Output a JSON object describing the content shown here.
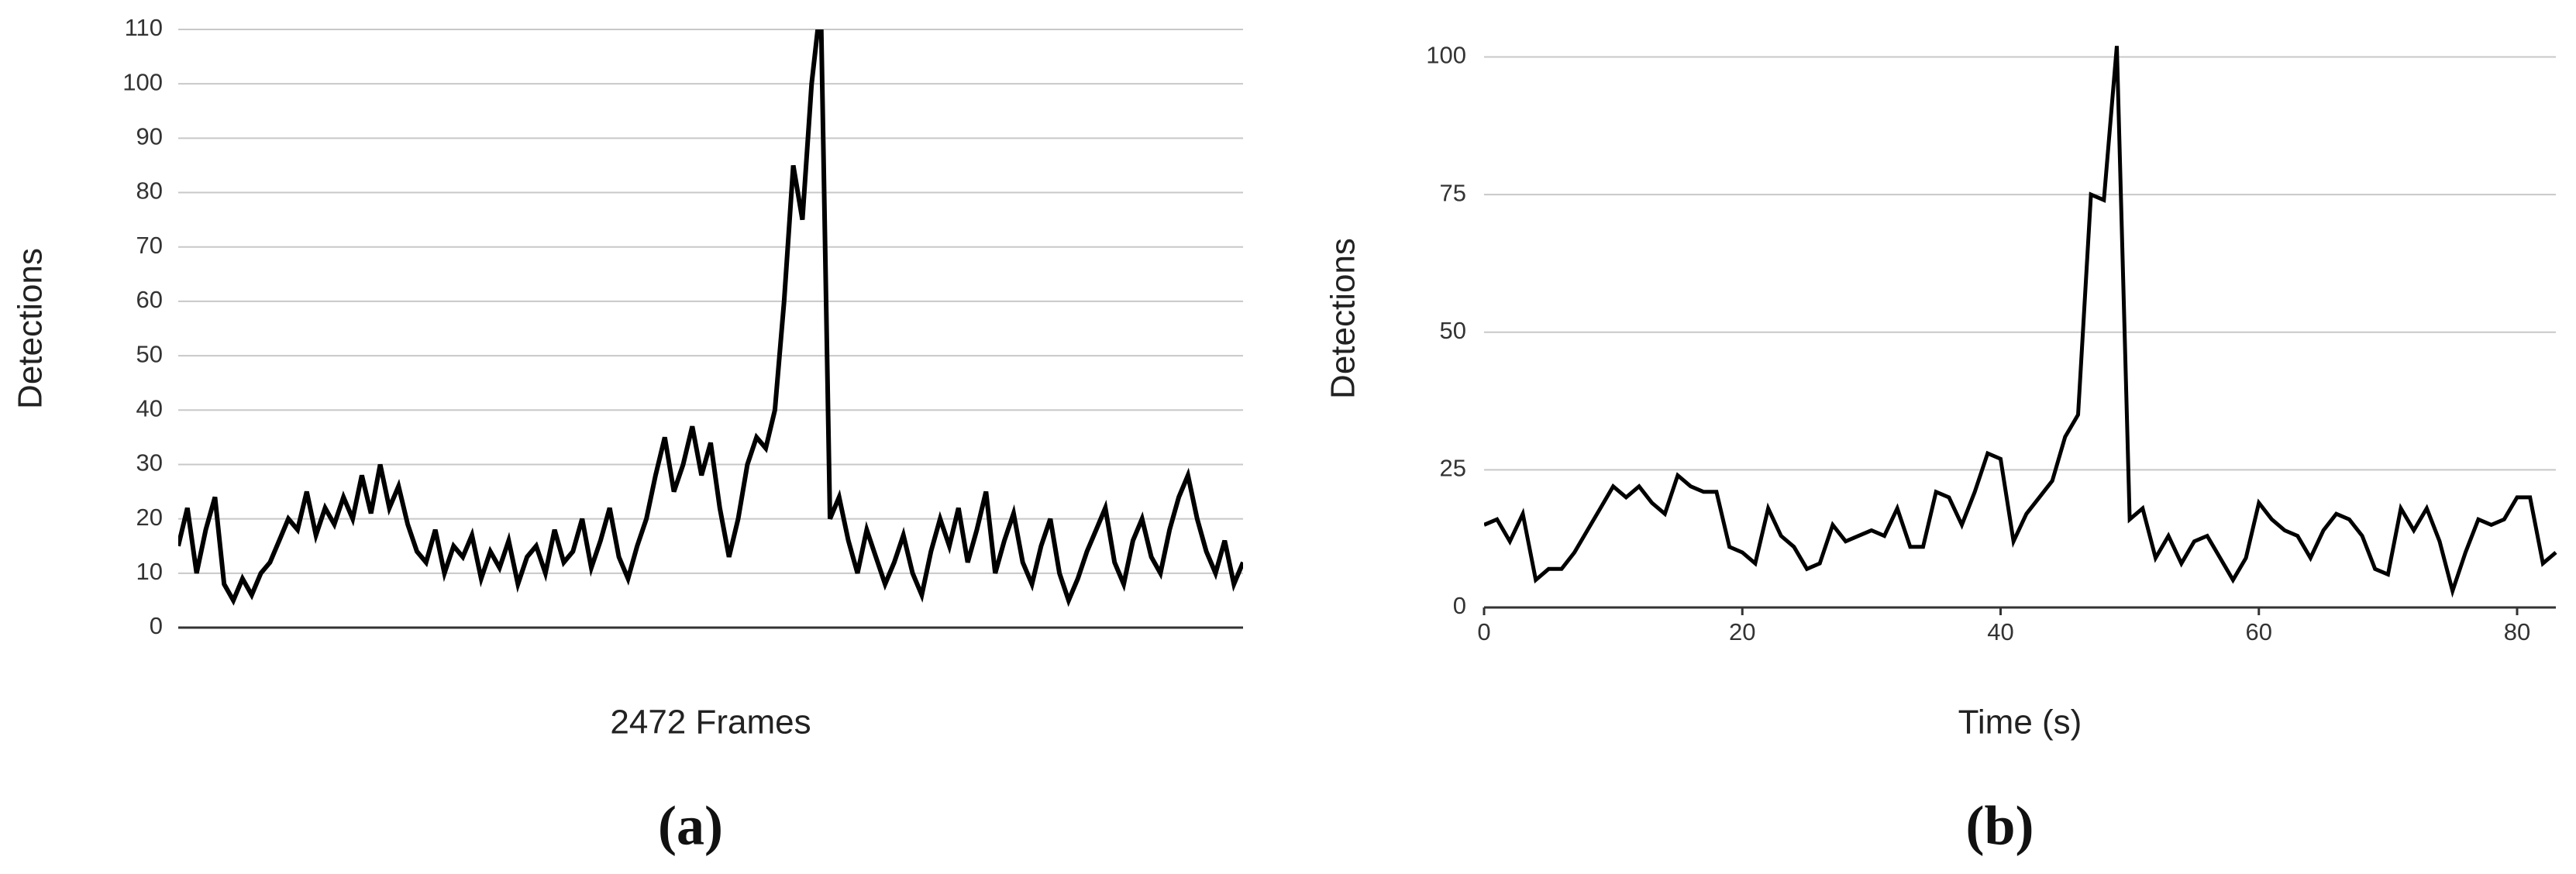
{
  "chart_data": [
    {
      "type": "line",
      "panel_label": "(a)",
      "xlabel": "2472 Frames",
      "ylabel": "Detections",
      "color": "#000000",
      "grid": true,
      "values": [
        15,
        22,
        10,
        18,
        24,
        8,
        5,
        9,
        6,
        10,
        12,
        16,
        20,
        18,
        25,
        17,
        22,
        19,
        24,
        20,
        28,
        21,
        30,
        22,
        26,
        19,
        14,
        12,
        18,
        10,
        15,
        13,
        17,
        9,
        14,
        11,
        16,
        8,
        13,
        15,
        10,
        18,
        12,
        14,
        20,
        11,
        16,
        22,
        13,
        9,
        15,
        20,
        28,
        35,
        25,
        30,
        37,
        28,
        34,
        22,
        13,
        20,
        30,
        35,
        33,
        40,
        60,
        85,
        75,
        100,
        115,
        20,
        24,
        16,
        10,
        18,
        13,
        8,
        12,
        17,
        10,
        6,
        14,
        20,
        15,
        22,
        12,
        18,
        25,
        10,
        16,
        21,
        12,
        8,
        15,
        20,
        10,
        5,
        9,
        14,
        18,
        22,
        12,
        8,
        16,
        20,
        13,
        10,
        18,
        24,
        28,
        20,
        14,
        10,
        16,
        8,
        12
      ],
      "ylim": [
        0,
        110
      ],
      "yticks": [
        0,
        10,
        20,
        30,
        40,
        50,
        60,
        70,
        80,
        90,
        100,
        110
      ]
    },
    {
      "type": "line",
      "panel_label": "(b)",
      "xlabel": "Time (s)",
      "ylabel": "Detections",
      "color": "#000000",
      "grid": true,
      "x": [
        0,
        1,
        2,
        3,
        4,
        5,
        6,
        7,
        8,
        9,
        10,
        11,
        12,
        13,
        14,
        15,
        16,
        17,
        18,
        19,
        20,
        21,
        22,
        23,
        24,
        25,
        26,
        27,
        28,
        29,
        30,
        31,
        32,
        33,
        34,
        35,
        36,
        37,
        38,
        39,
        40,
        41,
        42,
        43,
        44,
        45,
        46,
        47,
        48,
        49,
        50,
        51,
        52,
        53,
        54,
        55,
        56,
        57,
        58,
        59,
        60,
        61,
        62,
        63,
        64,
        65,
        66,
        67,
        68,
        69,
        70,
        71,
        72,
        73,
        74,
        75,
        76,
        77,
        78,
        79,
        80,
        81,
        82,
        83
      ],
      "values": [
        15,
        16,
        12,
        17,
        5,
        7,
        7,
        10,
        14,
        18,
        22,
        20,
        22,
        19,
        17,
        24,
        22,
        21,
        21,
        11,
        10,
        8,
        18,
        13,
        11,
        7,
        8,
        15,
        12,
        13,
        14,
        13,
        18,
        11,
        11,
        21,
        20,
        15,
        21,
        28,
        27,
        12,
        17,
        20,
        23,
        31,
        35,
        75,
        74,
        102,
        16,
        18,
        9,
        13,
        8,
        12,
        13,
        9,
        5,
        9,
        19,
        16,
        14,
        13,
        9,
        14,
        17,
        16,
        13,
        7,
        6,
        18,
        14,
        18,
        12,
        3,
        10,
        16,
        15,
        16,
        20,
        20,
        8,
        10
      ],
      "xlim": [
        0,
        83
      ],
      "xticks": [
        0,
        20,
        40,
        60,
        80
      ],
      "ylim": [
        0,
        105
      ],
      "yticks": [
        0,
        25,
        50,
        75,
        100
      ]
    }
  ]
}
